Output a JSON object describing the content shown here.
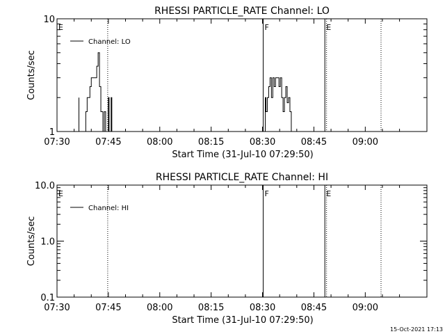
{
  "footer": {
    "timestamp": "15-Oct-2021 17:13"
  },
  "chart_data": [
    {
      "type": "line",
      "title": "RHESSI PARTICLE_RATE Channel: LO",
      "xlabel": "Start Time (31-Jul-10 07:29:50)",
      "ylabel": "Counts/sec",
      "yscale": "log",
      "ylim": [
        1,
        10
      ],
      "yticks": [
        1,
        10
      ],
      "ytick_labels": [
        "1",
        "10"
      ],
      "xlim_minutes": [
        0,
        108
      ],
      "xticks_minutes": [
        0,
        15,
        30,
        45,
        60,
        75,
        90
      ],
      "xtick_labels": [
        "07:30",
        "07:45",
        "08:00",
        "08:15",
        "08:30",
        "08:45",
        "09:00"
      ],
      "legend": {
        "position": "top-left",
        "label": "Channel: LO"
      },
      "series": [
        {
          "name": "Channel: LO",
          "x_minutes": [
            6.0,
            6.4,
            6.4,
            6.8,
            6.8,
            7.8,
            8.4,
            8.8,
            9.2,
            9.6,
            10.0,
            10.4,
            10.8,
            11.2,
            11.6,
            12.0,
            12.4,
            12.8,
            13.4,
            13.8,
            14.2,
            14.6,
            15.0,
            15.2,
            15.6,
            15.8,
            16.0,
            16.4,
            16.8,
            17.2,
            17.6,
            60.4,
            60.8,
            61.0,
            61.4,
            61.8,
            62.2,
            62.6,
            63.0,
            63.4,
            63.8,
            64.0,
            64.4,
            64.8,
            65.2,
            65.6,
            66.0,
            66.4,
            66.8,
            67.2,
            67.6,
            68.0,
            68.4,
            68.8,
            69.2
          ],
          "y": [
            1,
            2,
            1,
            1,
            1,
            1,
            1.5,
            2,
            2,
            2.5,
            3,
            3,
            3,
            3,
            3.8,
            5,
            2.5,
            1.5,
            1,
            1.5,
            1,
            1,
            2,
            1,
            1,
            2,
            1,
            1,
            1,
            1,
            1,
            1,
            2,
            1.5,
            2,
            2.5,
            3,
            2,
            3,
            2.5,
            3,
            3,
            3,
            2.5,
            3,
            2,
            1.5,
            2,
            2.5,
            1.8,
            2,
            1.5,
            1,
            1,
            1
          ]
        }
      ],
      "markers": [
        {
          "label": "E",
          "minute": 0,
          "style": "dotted"
        },
        {
          "label": "",
          "minute": 14.8,
          "style": "dotted"
        },
        {
          "label": "F",
          "minute": 60.2,
          "style": "solid"
        },
        {
          "label": "E",
          "minute": 78.2,
          "style": "solid"
        },
        {
          "label": "",
          "minute": 78.7,
          "style": "dotted"
        },
        {
          "label": "",
          "minute": 94.6,
          "style": "dotted"
        }
      ]
    },
    {
      "type": "line",
      "title": "RHESSI PARTICLE_RATE Channel: HI",
      "xlabel": "Start Time (31-Jul-10 07:29:50)",
      "ylabel": "Counts/sec",
      "yscale": "log",
      "ylim": [
        0.1,
        10
      ],
      "yticks": [
        0.1,
        1,
        10
      ],
      "ytick_labels": [
        "0.1",
        "1.0",
        "10.0"
      ],
      "xlim_minutes": [
        0,
        108
      ],
      "xticks_minutes": [
        0,
        15,
        30,
        45,
        60,
        75,
        90
      ],
      "xtick_labels": [
        "07:30",
        "07:45",
        "08:00",
        "08:15",
        "08:30",
        "08:45",
        "09:00"
      ],
      "legend": {
        "position": "top-left",
        "label": "Channel: HI"
      },
      "series": [
        {
          "name": "Channel: HI",
          "x_minutes": [],
          "y": []
        }
      ],
      "markers": [
        {
          "label": "E",
          "minute": 0,
          "style": "dotted"
        },
        {
          "label": "",
          "minute": 14.8,
          "style": "dotted"
        },
        {
          "label": "F",
          "minute": 60.2,
          "style": "solid"
        },
        {
          "label": "E",
          "minute": 78.2,
          "style": "solid"
        },
        {
          "label": "",
          "minute": 78.7,
          "style": "dotted"
        },
        {
          "label": "",
          "minute": 94.6,
          "style": "dotted"
        }
      ]
    }
  ]
}
